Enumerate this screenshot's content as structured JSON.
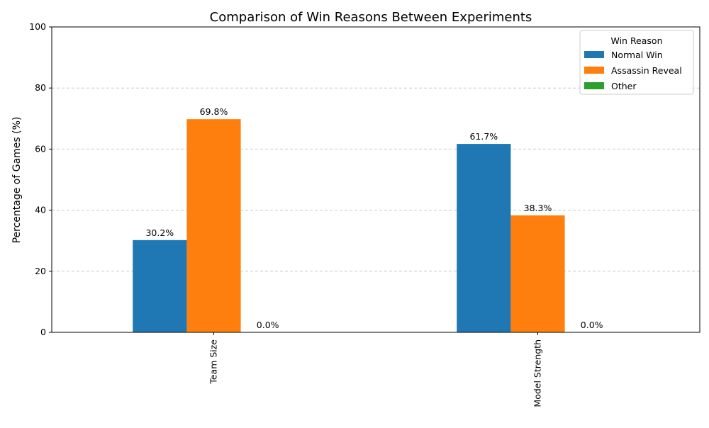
{
  "chart_data": {
    "type": "bar",
    "title": "Comparison of Win Reasons Between Experiments",
    "xlabel": "",
    "ylabel": "Percentage of Games (%)",
    "categories": [
      "Team Size",
      "Model Strength"
    ],
    "ylim": [
      0,
      100
    ],
    "yticks": [
      0,
      20,
      40,
      60,
      80,
      100
    ],
    "grid": "y-dashed",
    "legend": {
      "title": "Win Reason",
      "placement": "top-right"
    },
    "series": [
      {
        "name": "Normal Win",
        "color": "#1f77b4",
        "values": [
          30.2,
          61.7
        ],
        "labels": [
          "30.2%",
          "61.7%"
        ]
      },
      {
        "name": "Assassin Reveal",
        "color": "#ff7f0e",
        "values": [
          69.8,
          38.3
        ],
        "labels": [
          "69.8%",
          "38.3%"
        ]
      },
      {
        "name": "Other",
        "color": "#2ca02c",
        "values": [
          0.0,
          0.0
        ],
        "labels": [
          "0.0%",
          "0.0%"
        ]
      }
    ]
  }
}
